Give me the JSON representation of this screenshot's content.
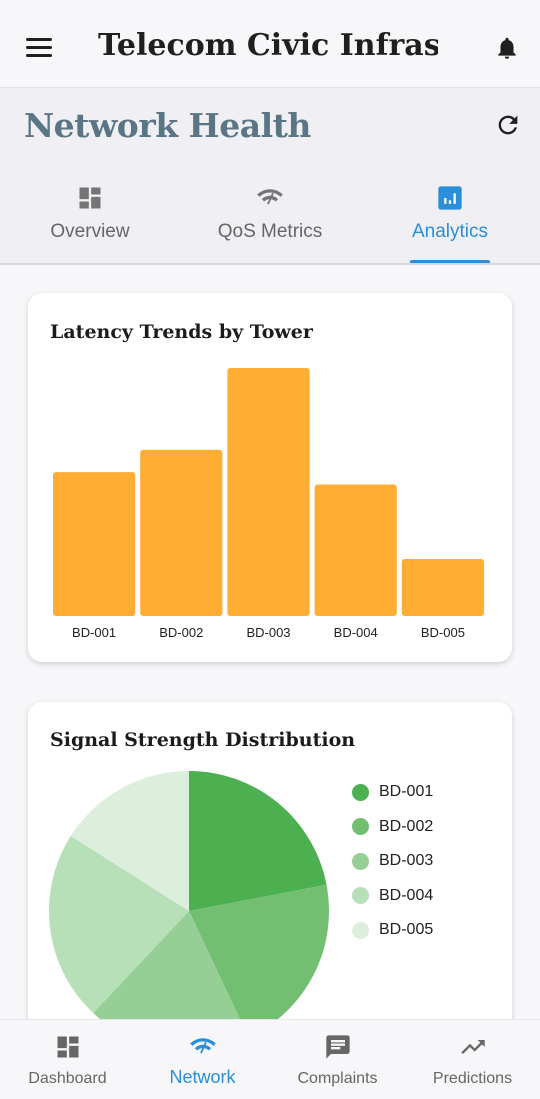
{
  "app_bar": {
    "title": "Telecom Civic Infrastr...",
    "menu_icon": "hamburger-menu-icon",
    "notification_icon": "bell-icon"
  },
  "header": {
    "title": "Network Health",
    "refresh_icon": "refresh-icon"
  },
  "tabs": [
    {
      "label": "Overview",
      "icon": "dashboard-icon",
      "active": false
    },
    {
      "label": "QoS Metrics",
      "icon": "network-check-icon",
      "active": false
    },
    {
      "label": "Analytics",
      "icon": "analytics-icon",
      "active": true
    }
  ],
  "colors": {
    "accent": "#2a8fd8",
    "bar": "#ffad33",
    "title": "#5a7583"
  },
  "chart_data": [
    {
      "type": "bar",
      "title": "Latency Trends by Tower",
      "categories": [
        "BD-001",
        "BD-002",
        "BD-003",
        "BD-004",
        "BD-005"
      ],
      "values": [
        58,
        67,
        100,
        53,
        23
      ],
      "ylim": [
        0,
        100
      ],
      "grid": false
    },
    {
      "type": "pie",
      "title": "Signal Strength Distribution",
      "labels": [
        "BD-001",
        "BD-002",
        "BD-003",
        "BD-004",
        "BD-005"
      ],
      "values": [
        22,
        21,
        19,
        22,
        16
      ],
      "colors": [
        "#4caf50",
        "#72bf72",
        "#95cf95",
        "#b8e0b8",
        "#dcefdc"
      ],
      "legend": "right"
    }
  ],
  "bottom_nav": [
    {
      "label": "Dashboard",
      "icon": "dashboard-icon",
      "active": false
    },
    {
      "label": "Network",
      "icon": "wifi-icon",
      "active": true
    },
    {
      "label": "Complaints",
      "icon": "chat-icon",
      "active": false
    },
    {
      "label": "Predictions",
      "icon": "trending-up-icon",
      "active": false
    }
  ]
}
